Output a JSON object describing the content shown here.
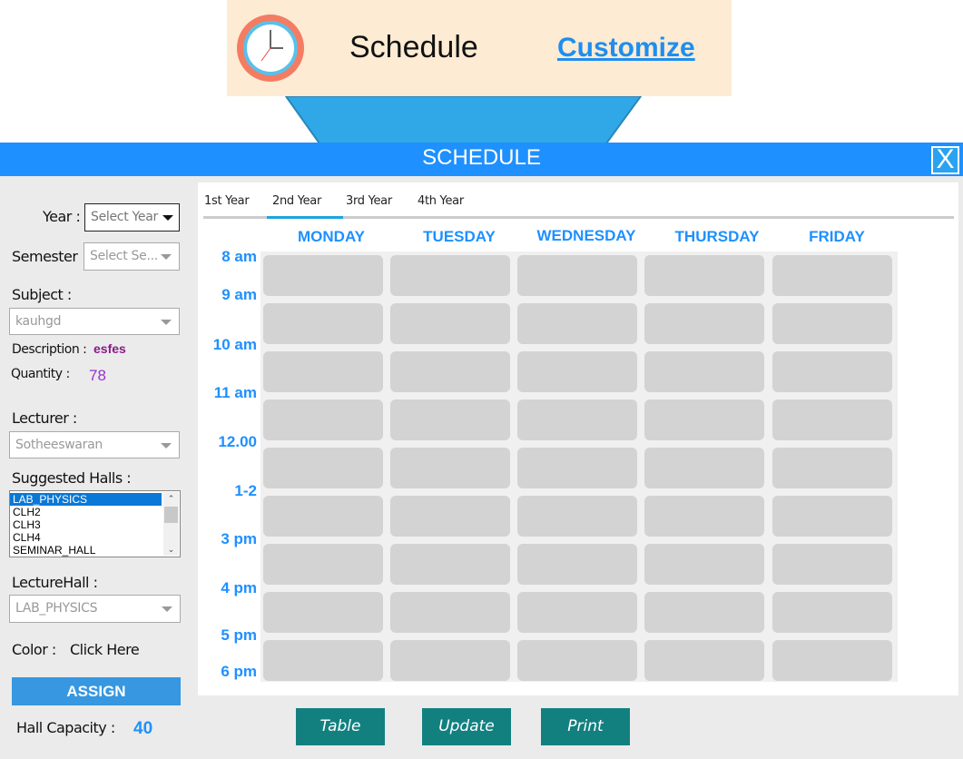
{
  "banner": {
    "title": "Schedule",
    "link": "Customize"
  },
  "window": {
    "title": "SCHEDULE",
    "close": "X"
  },
  "form": {
    "year_label": "Year :",
    "year_value": "Select Year",
    "semester_label": "Semester",
    "semester_value": "Select Se...",
    "subject_label": "Subject :",
    "subject_value": "kauhgd",
    "description_label": "Description :",
    "description_value": "esfes",
    "quantity_label": "Quantity :",
    "quantity_value": "78",
    "lecturer_label": "Lecturer :",
    "lecturer_value": "Sotheeswaran",
    "halls_label": "Suggested Halls :",
    "halls": [
      "LAB_PHYSICS",
      "CLH2",
      "CLH3",
      "CLH4",
      "SEMINAR_HALL"
    ],
    "lecturehall_label": "LectureHall :",
    "lecturehall_value": "LAB_PHYSICS",
    "color_label": "Color :",
    "color_value": "Click Here",
    "assign": "ASSIGN",
    "capacity_label": "Hall Capacity :",
    "capacity_value": "40"
  },
  "tabs": [
    "1st Year",
    "2nd Year",
    "3rd Year",
    "4th Year"
  ],
  "active_tab": "2nd Year",
  "days": [
    "MONDAY",
    "TUESDAY",
    "WEDNESDAY",
    "THURSDAY",
    "FRIDAY"
  ],
  "times": [
    "8 am",
    "9 am",
    "10 am",
    "11 am",
    "12.00",
    "1-2",
    "3 pm",
    "4 pm",
    "5 pm",
    "6 pm"
  ],
  "buttons": {
    "table": "Table",
    "update": "Update",
    "print": "Print"
  },
  "colors": {
    "accent": "#1e90ff",
    "button": "#138080",
    "cell": "#d3d3d3",
    "banner": "#fdebd3"
  }
}
